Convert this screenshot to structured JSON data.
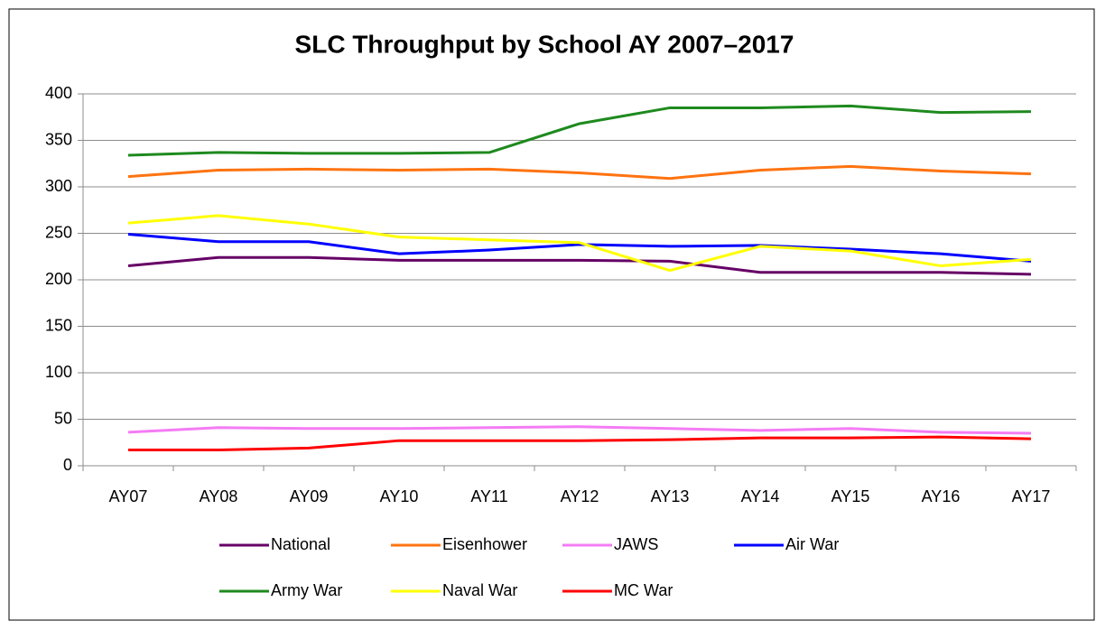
{
  "chart_data": {
    "type": "line",
    "title": "SLC Throughput by School AY 2007–2017",
    "categories": [
      "AY07",
      "AY08",
      "AY09",
      "AY10",
      "AY11",
      "AY12",
      "AY13",
      "AY14",
      "AY15",
      "AY16",
      "AY17"
    ],
    "series": [
      {
        "name": "National",
        "color": "#660066",
        "values": [
          215,
          224,
          224,
          221,
          221,
          221,
          220,
          208,
          208,
          208,
          206
        ]
      },
      {
        "name": "Eisenhower",
        "color": "#ff7310",
        "values": [
          311,
          318,
          319,
          318,
          319,
          315,
          309,
          318,
          322,
          317,
          314
        ]
      },
      {
        "name": "JAWS",
        "color": "#f47cf4",
        "values": [
          36,
          41,
          40,
          40,
          41,
          42,
          40,
          38,
          40,
          36,
          35
        ]
      },
      {
        "name": "Air War",
        "color": "#0000ff",
        "values": [
          249,
          241,
          241,
          228,
          232,
          238,
          236,
          237,
          233,
          228,
          220
        ]
      },
      {
        "name": "Army War",
        "color": "#1e8a1e",
        "values": [
          334,
          337,
          336,
          336,
          337,
          368,
          385,
          385,
          387,
          380,
          381
        ]
      },
      {
        "name": "Naval War",
        "color": "#ffff00",
        "values": [
          261,
          269,
          260,
          246,
          243,
          240,
          210,
          236,
          231,
          215,
          222
        ]
      },
      {
        "name": "MC War",
        "color": "#ff0000",
        "values": [
          17,
          17,
          19,
          27,
          27,
          27,
          28,
          30,
          30,
          31,
          29
        ]
      }
    ],
    "ylim": [
      0,
      400
    ],
    "yticks": [
      0,
      50,
      100,
      150,
      200,
      250,
      300,
      350,
      400
    ],
    "grid": true,
    "legend": "bottom"
  }
}
